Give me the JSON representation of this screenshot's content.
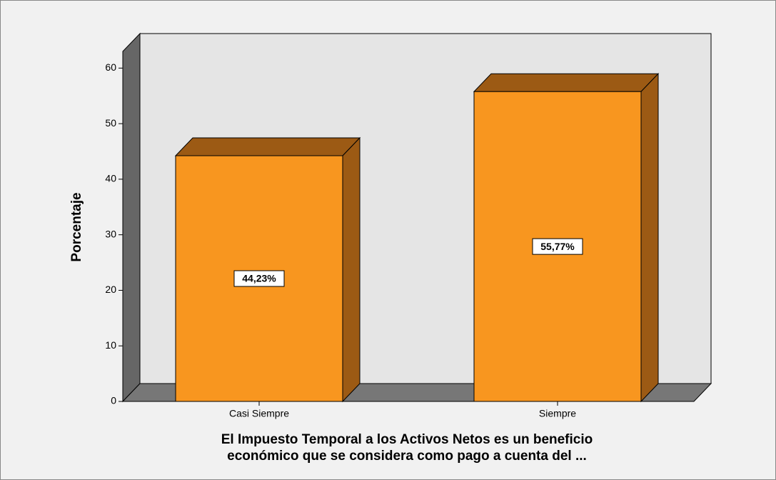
{
  "chart_data": {
    "type": "bar3d",
    "categories": [
      "Casi Siempre",
      "Siempre"
    ],
    "values": [
      44.23,
      55.77
    ],
    "value_labels": [
      "44,23%",
      "55,77%"
    ],
    "color": "#f8961f",
    "y_label": "Porcentaje",
    "x_label": [
      "El Impuesto Temporal a los Activos Netos es un beneficio",
      "económico que se considera como pago a cuenta del ..."
    ],
    "ylim": [
      0,
      63
    ],
    "yticks": [
      0,
      10,
      20,
      30,
      40,
      50,
      60
    ]
  }
}
